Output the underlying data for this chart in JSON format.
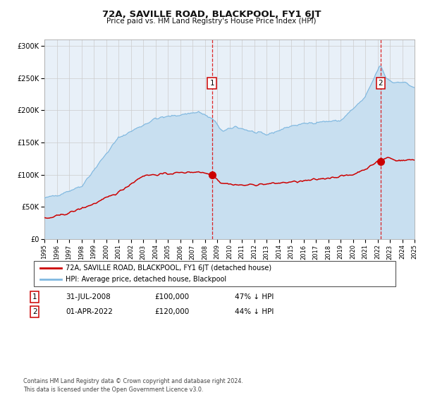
{
  "title": "72A, SAVILLE ROAD, BLACKPOOL, FY1 6JT",
  "subtitle": "Price paid vs. HM Land Registry's House Price Index (HPI)",
  "ylabel_ticks": [
    "£0",
    "£50K",
    "£100K",
    "£150K",
    "£200K",
    "£250K",
    "£300K"
  ],
  "ytick_values": [
    0,
    50000,
    100000,
    150000,
    200000,
    250000,
    300000
  ],
  "ylim": [
    0,
    310000
  ],
  "year_start": 1995,
  "year_end": 2025,
  "color_hpi": "#7fb8e0",
  "color_hpi_fill": "#c8dff0",
  "color_price": "#cc0000",
  "color_marker": "#cc0000",
  "marker1_year": 2008.58,
  "marker1_value": 100000,
  "marker2_year": 2022.25,
  "marker2_value": 120000,
  "legend_label1": "72A, SAVILLE ROAD, BLACKPOOL, FY1 6JT (detached house)",
  "legend_label2": "HPI: Average price, detached house, Blackpool",
  "ann1_label": "1",
  "ann1_date": "31-JUL-2008",
  "ann1_price": "£100,000",
  "ann1_pct": "47% ↓ HPI",
  "ann2_label": "2",
  "ann2_date": "01-APR-2022",
  "ann2_price": "£120,000",
  "ann2_pct": "44% ↓ HPI",
  "footnote": "Contains HM Land Registry data © Crown copyright and database right 2024.\nThis data is licensed under the Open Government Licence v3.0.",
  "bg_color": "#e8f0f8",
  "grid_color": "#cccccc"
}
